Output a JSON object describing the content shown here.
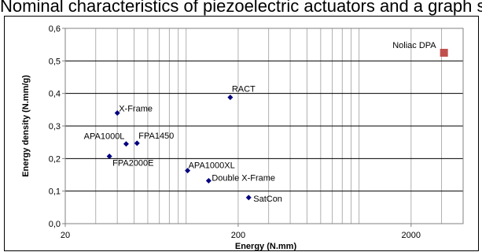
{
  "caption": "Nominal characteristics of piezoelectric actuators and a graph showing the energy density vs. the energy",
  "chart_data": {
    "type": "scatter",
    "xscale": "log",
    "xlim": [
      20,
      4000
    ],
    "ylim": [
      0,
      0.6
    ],
    "xticks": [
      20,
      200,
      2000
    ],
    "xtick_labels": [
      "20",
      "200",
      "2000"
    ],
    "yticks": [
      0,
      0.1,
      0.2,
      0.3,
      0.4,
      0.5,
      0.6
    ],
    "ytick_labels": [
      "0,0",
      "0,1",
      "0,2",
      "0,3",
      "0,4",
      "0,5",
      "0,6"
    ],
    "xlabel": "Energy (N.mm)",
    "ylabel": "Energy density (N.mm/g)",
    "grid": "vertical minor log gridlines and horizontal major gridlines",
    "series_colors": {
      "default": "#000080",
      "highlight": "#c0504d"
    },
    "points": [
      {
        "label": "X-Frame",
        "x": 40,
        "y": 0.34,
        "style": "default"
      },
      {
        "label": "APA1000L",
        "x": 45,
        "y": 0.245,
        "style": "default"
      },
      {
        "label": "FPA1450",
        "x": 52,
        "y": 0.247,
        "style": "default"
      },
      {
        "label": "FPA2000E",
        "x": 36,
        "y": 0.207,
        "style": "default"
      },
      {
        "label": "APA1000XL",
        "x": 102,
        "y": 0.163,
        "style": "default"
      },
      {
        "label": "Double X-Frame",
        "x": 135,
        "y": 0.132,
        "style": "default"
      },
      {
        "label": "RACT",
        "x": 180,
        "y": 0.388,
        "style": "default"
      },
      {
        "label": "SatCon",
        "x": 230,
        "y": 0.08,
        "style": "default"
      },
      {
        "label": "Noliac DPA",
        "x": 3100,
        "y": 0.525,
        "style": "highlight"
      }
    ]
  }
}
